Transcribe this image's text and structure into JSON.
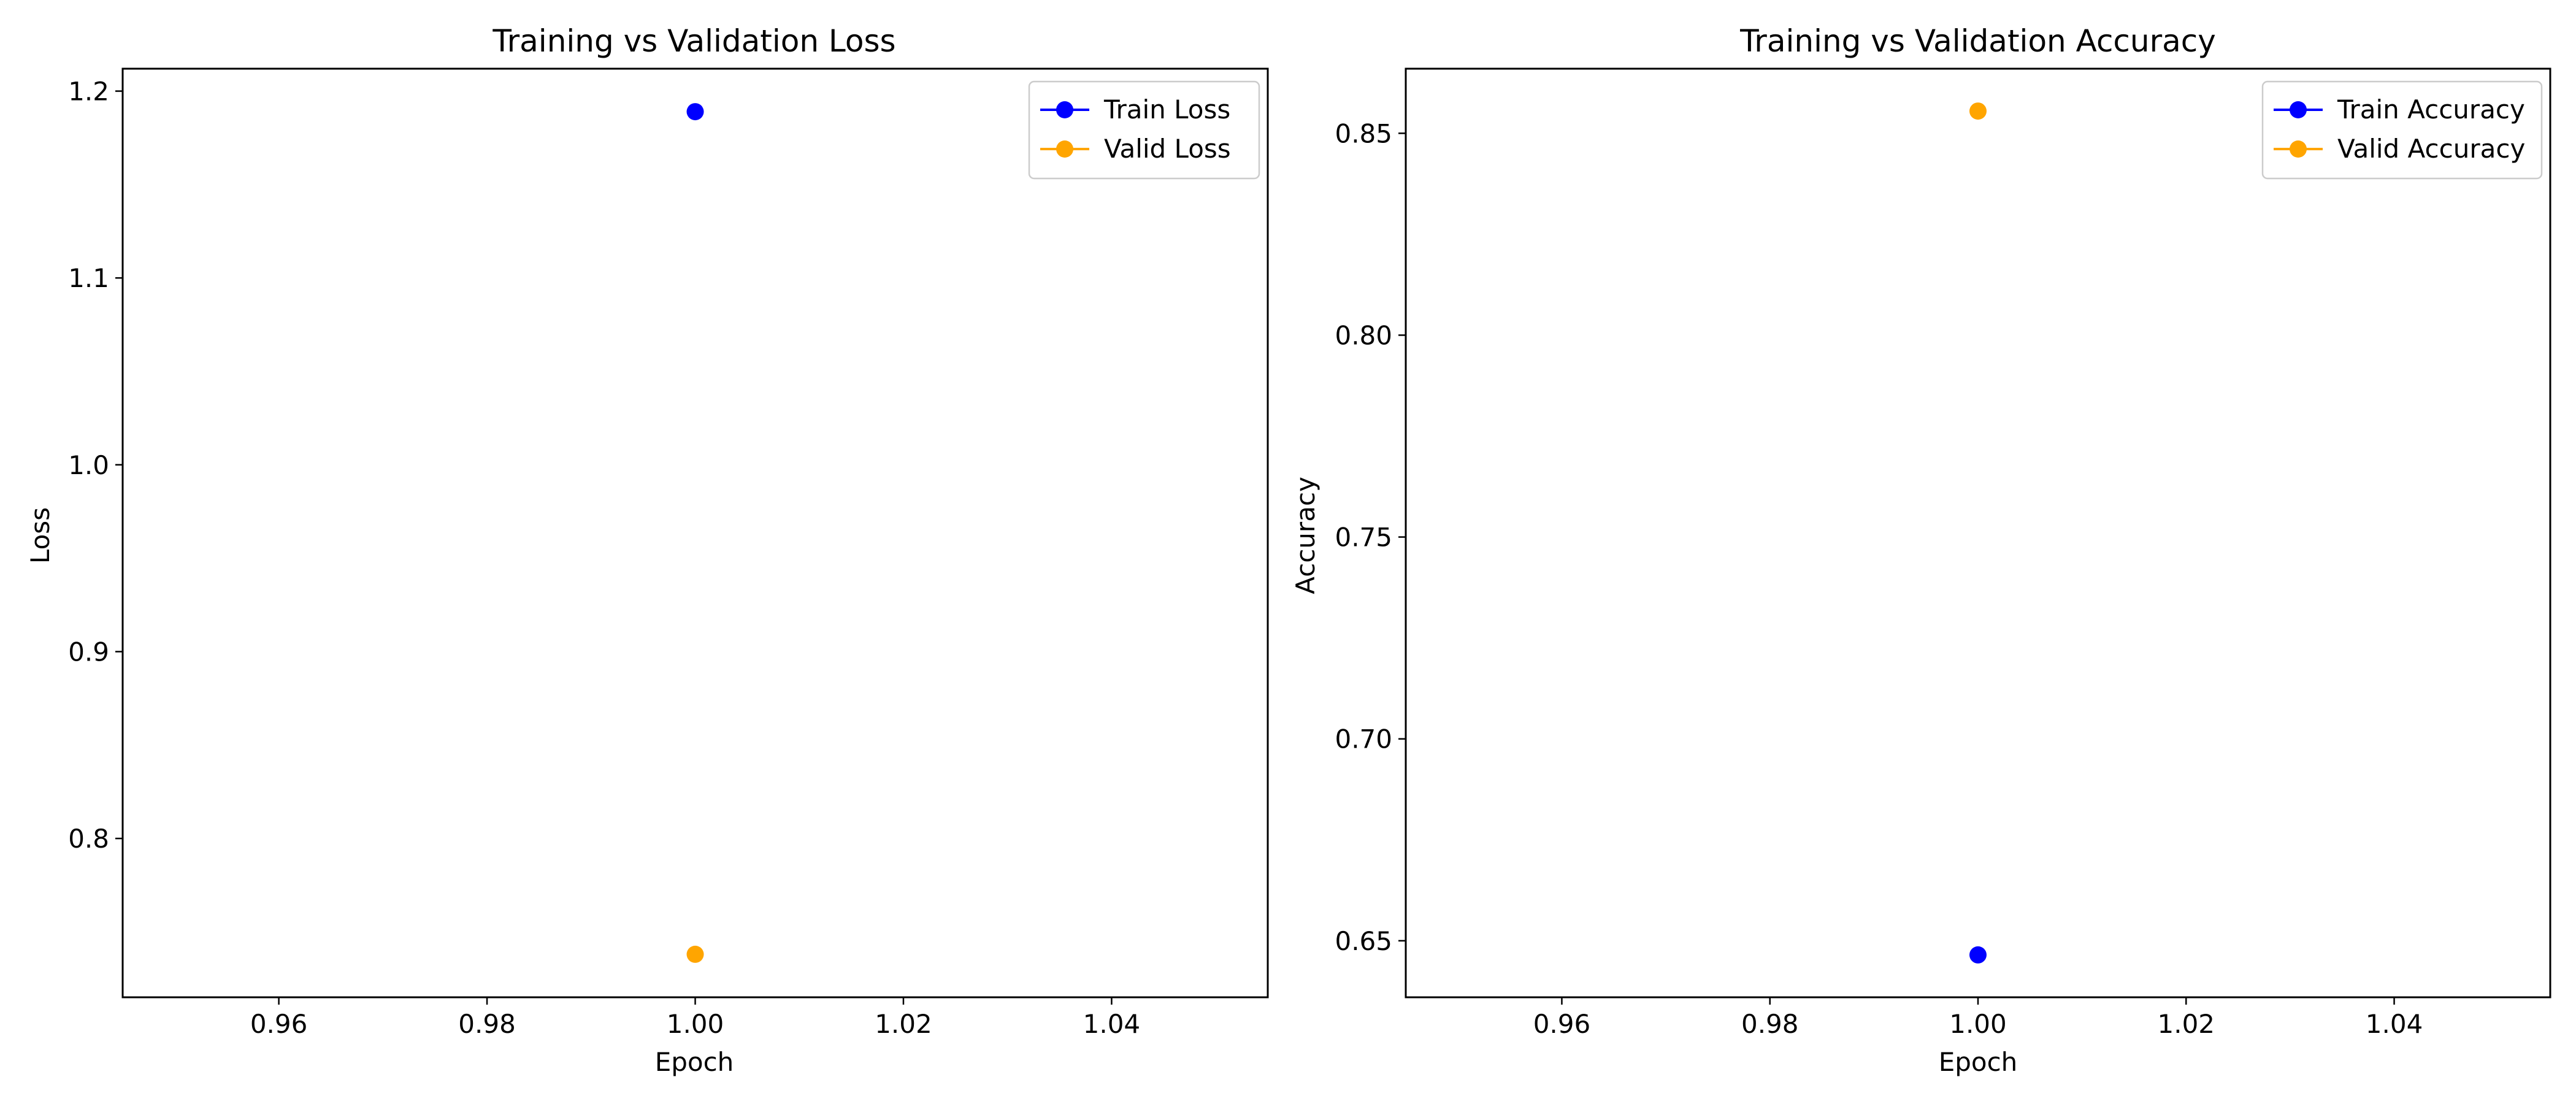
{
  "chart_data": [
    {
      "type": "line",
      "title": "Training vs Validation Loss",
      "xlabel": "Epoch",
      "ylabel": "Loss",
      "xlim": [
        0.945,
        1.055
      ],
      "ylim": [
        0.715,
        1.212
      ],
      "x_ticks": [
        0.96,
        0.98,
        1.0,
        1.02,
        1.04
      ],
      "x_tick_labels": [
        "0.96",
        "0.98",
        "1.00",
        "1.02",
        "1.04"
      ],
      "y_ticks": [
        0.8,
        0.9,
        1.0,
        1.1,
        1.2
      ],
      "y_tick_labels": [
        "0.8",
        "0.9",
        "1.0",
        "1.1",
        "1.2"
      ],
      "grid": false,
      "legend_position": "top-right",
      "x": [
        1
      ],
      "series": [
        {
          "name": "Train Loss",
          "color": "#0000ff",
          "values": [
            1.189
          ]
        },
        {
          "name": "Valid Loss",
          "color": "#ffa500",
          "values": [
            0.738
          ]
        }
      ]
    },
    {
      "type": "line",
      "title": "Training vs Validation Accuracy",
      "xlabel": "Epoch",
      "ylabel": "Accuracy",
      "xlim": [
        0.945,
        1.055
      ],
      "ylim": [
        0.636,
        0.866
      ],
      "x_ticks": [
        0.96,
        0.98,
        1.0,
        1.02,
        1.04
      ],
      "x_tick_labels": [
        "0.96",
        "0.98",
        "1.00",
        "1.02",
        "1.04"
      ],
      "y_ticks": [
        0.65,
        0.7,
        0.75,
        0.8,
        0.85
      ],
      "y_tick_labels": [
        "0.65",
        "0.70",
        "0.75",
        "0.80",
        "0.85"
      ],
      "grid": false,
      "legend_position": "top-right",
      "x": [
        1
      ],
      "series": [
        {
          "name": "Train Accuracy",
          "color": "#0000ff",
          "values": [
            0.6465
          ]
        },
        {
          "name": "Valid Accuracy",
          "color": "#ffa500",
          "values": [
            0.8555
          ]
        }
      ]
    }
  ]
}
